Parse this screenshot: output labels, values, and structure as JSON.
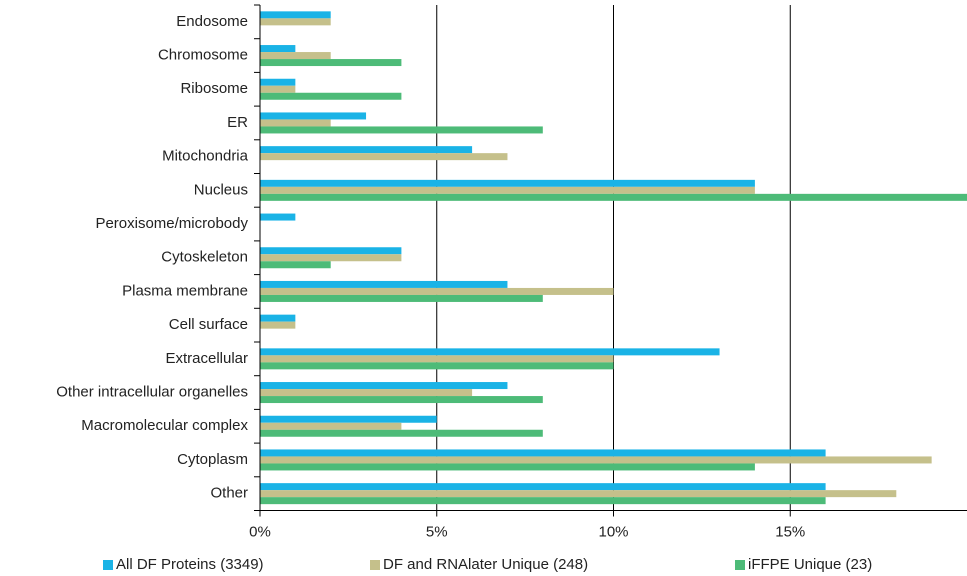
{
  "chart_data": {
    "type": "bar",
    "orientation": "horizontal",
    "categories": [
      "Endosome",
      "Chromosome",
      "Ribosome",
      "ER",
      "Mitochondria",
      "Nucleus",
      "Peroxisome/microbody",
      "Cytoskeleton",
      "Plasma membrane",
      "Cell surface",
      "Extracellular",
      "Other intracellular organelles",
      "Macromolecular complex",
      "Cytoplasm",
      "Other"
    ],
    "series": [
      {
        "name": "All DF Proteins (3349)",
        "color": "#1ab3e6",
        "values": [
          2,
          1,
          1,
          3,
          6,
          14,
          1,
          4,
          7,
          1,
          13,
          7,
          5,
          16,
          16
        ]
      },
      {
        "name": "DF and RNAlater Unique (248)",
        "color": "#c5c08b",
        "values": [
          2,
          2,
          1,
          2,
          7,
          14,
          0,
          4,
          10,
          1,
          10,
          6,
          4,
          19,
          18
        ]
      },
      {
        "name": "iFFPE Unique (23)",
        "color": "#4dbb78",
        "values": [
          0,
          4,
          4,
          8,
          0,
          20,
          0,
          2,
          8,
          0,
          10,
          8,
          8,
          14,
          16
        ]
      }
    ],
    "xlim": [
      0,
      20
    ],
    "xticks": [
      {
        "value": 0,
        "label": "0%"
      },
      {
        "value": 5,
        "label": "5%"
      },
      {
        "value": 10,
        "label": "10%"
      },
      {
        "value": 15,
        "label": "15%"
      }
    ],
    "grid": true,
    "legend": "bottom"
  }
}
